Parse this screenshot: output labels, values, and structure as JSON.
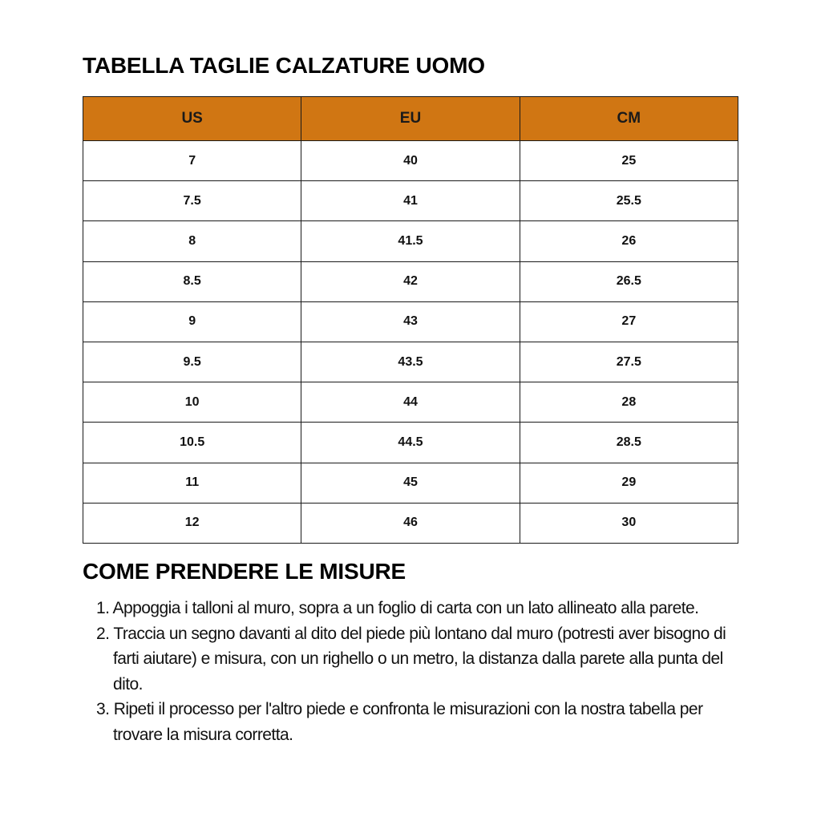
{
  "title": "TABELLA TAGLIE CALZATURE UOMO",
  "table": {
    "header_color": "#d07613",
    "headers": [
      "US",
      "EU",
      "CM"
    ],
    "rows": [
      [
        "7",
        "40",
        "25"
      ],
      [
        "7.5",
        "41",
        "25.5"
      ],
      [
        "8",
        "41.5",
        "26"
      ],
      [
        "8.5",
        "42",
        "26.5"
      ],
      [
        "9",
        "43",
        "27"
      ],
      [
        "9.5",
        "43.5",
        "27.5"
      ],
      [
        "10",
        "44",
        "28"
      ],
      [
        "10.5",
        "44.5",
        "28.5"
      ],
      [
        "11",
        "45",
        "29"
      ],
      [
        "12",
        "46",
        "30"
      ]
    ]
  },
  "instructions": {
    "title": "COME PRENDERE LE MISURE",
    "items": [
      "1. Appoggia i talloni al muro, sopra a un foglio di carta con un lato allineato alla parete.",
      "2. Traccia un segno davanti al dito del piede più lontano dal muro (potresti aver bisogno di farti aiutare) e misura, con un righello o un metro, la distanza dalla parete alla punta del dito.",
      "3. Ripeti il processo per l'altro piede e confronta le misurazioni con la nostra tabella per trovare la misura corretta."
    ]
  }
}
